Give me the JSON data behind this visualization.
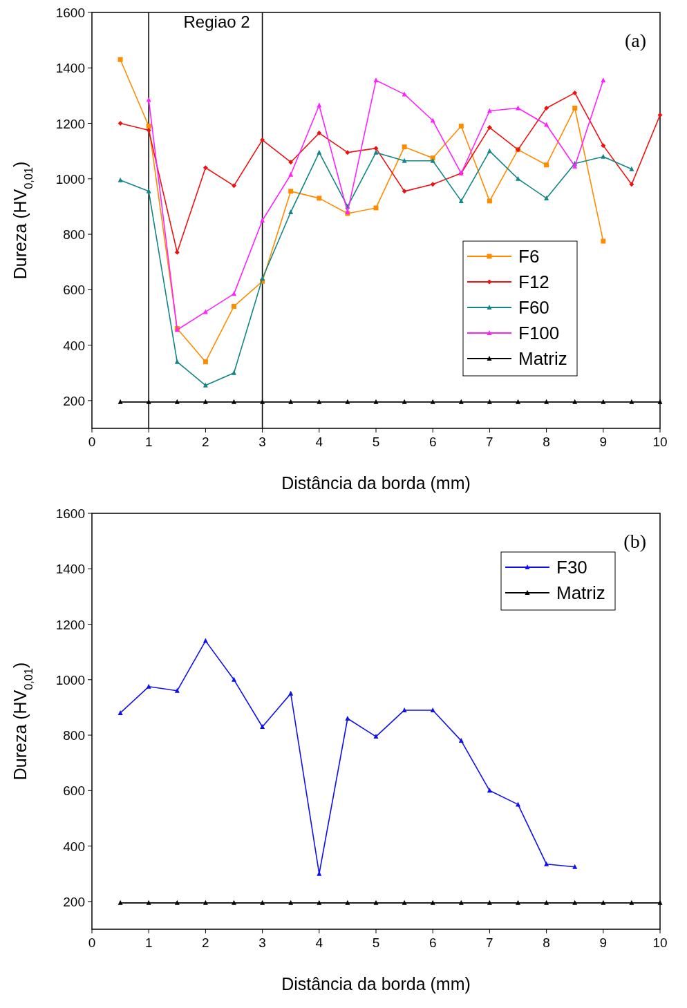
{
  "chart_data": [
    {
      "type": "line",
      "xlabel": "Distância da borda (mm)",
      "ylabel": "Dureza (HV$_{0,01}$)",
      "xlim": [
        0,
        10
      ],
      "xticks": [
        0,
        1,
        2,
        3,
        4,
        5,
        6,
        7,
        8,
        9,
        10
      ],
      "ylim": [
        100,
        1600
      ],
      "yticks": [
        200,
        400,
        600,
        800,
        1000,
        1200,
        1400,
        1600
      ],
      "grid": false,
      "legend": "center right",
      "annotations": [
        "(a)"
      ],
      "ref_lines": [
        {
          "axis": "x",
          "value": 1,
          "color": "#000000"
        },
        {
          "axis": "x",
          "value": 3,
          "label": "Regiao 2",
          "color": "#000000"
        }
      ],
      "series": [
        {
          "name": "F6",
          "color": "#ff8c00",
          "marker": "square",
          "x": [
            0.5,
            1,
            1.5,
            2,
            2.5,
            3,
            3.5,
            4,
            4.5,
            5,
            5.5,
            6,
            6.5,
            7,
            7.5,
            8,
            8.5,
            9
          ],
          "values": [
            1430,
            1190,
            460,
            340,
            540,
            630,
            955,
            930,
            875,
            895,
            1115,
            1075,
            1190,
            920,
            1105,
            1050,
            1255,
            775
          ]
        },
        {
          "name": "F12",
          "color": "#ee1111",
          "marker": "diamond",
          "x": [
            0.5,
            1,
            1.5,
            2,
            2.5,
            3,
            3.5,
            4,
            4.5,
            5,
            5.5,
            6,
            6.5,
            7,
            7.5,
            8,
            8.5,
            9,
            9.5,
            10
          ],
          "values": [
            1200,
            1175,
            735,
            1040,
            975,
            1140,
            1060,
            1165,
            1095,
            1110,
            955,
            980,
            1020,
            1185,
            1105,
            1255,
            1310,
            1120,
            980,
            1230
          ]
        },
        {
          "name": "F60",
          "color": "#138585",
          "marker": "triangle",
          "x": [
            0.5,
            1,
            1.5,
            2,
            2.5,
            3,
            3.5,
            4,
            4.5,
            5,
            5.5,
            6,
            6.5,
            7,
            7.5,
            8,
            8.5,
            9,
            9.5
          ],
          "values": [
            995,
            955,
            340,
            255,
            300,
            640,
            880,
            1095,
            900,
            1095,
            1065,
            1065,
            920,
            1100,
            1000,
            930,
            1055,
            1080,
            1035
          ]
        },
        {
          "name": "F100",
          "color": "#ff22ff",
          "marker": "triangle",
          "x": [
            1,
            1.5,
            2,
            2.5,
            3,
            3.5,
            4,
            4.5,
            5,
            5.5,
            6,
            6.5,
            7,
            7.5,
            8,
            8.5,
            9
          ],
          "values": [
            1285,
            455,
            520,
            585,
            850,
            1015,
            1265,
            880,
            1355,
            1305,
            1210,
            1020,
            1245,
            1255,
            1195,
            1045,
            1355
          ]
        },
        {
          "name": "Matriz",
          "color": "#000000",
          "marker": "triangle",
          "x": [
            0.5,
            1,
            1.5,
            2,
            2.5,
            3,
            3.5,
            4,
            4.5,
            5,
            5.5,
            6,
            6.5,
            7,
            7.5,
            8,
            8.5,
            9,
            9.5,
            10
          ],
          "values": [
            195,
            195,
            195,
            195,
            195,
            195,
            195,
            195,
            195,
            195,
            195,
            195,
            195,
            195,
            195,
            195,
            195,
            195,
            195,
            195
          ]
        }
      ]
    },
    {
      "type": "line",
      "xlabel": "Distância da borda (mm)",
      "ylabel": "Dureza (HV$_{0,01}$)",
      "xlim": [
        0,
        10
      ],
      "xticks": [
        0,
        1,
        2,
        3,
        4,
        5,
        6,
        7,
        8,
        9,
        10
      ],
      "ylim": [
        100,
        1600
      ],
      "yticks": [
        200,
        400,
        600,
        800,
        1000,
        1200,
        1400,
        1600
      ],
      "grid": false,
      "legend": "top right",
      "annotations": [
        "(b)"
      ],
      "series": [
        {
          "name": "F30",
          "color": "#1010ee",
          "marker": "triangle",
          "x": [
            0.5,
            1,
            1.5,
            2,
            2.5,
            3,
            3.5,
            4,
            4.5,
            5,
            5.5,
            6,
            6.5,
            7,
            7.5,
            8,
            8.5
          ],
          "values": [
            880,
            975,
            960,
            1140,
            1000,
            830,
            950,
            300,
            860,
            795,
            890,
            890,
            780,
            600,
            550,
            335,
            325
          ]
        },
        {
          "name": "Matriz",
          "color": "#000000",
          "marker": "triangle",
          "x": [
            0.5,
            1,
            1.5,
            2,
            2.5,
            3,
            3.5,
            4,
            4.5,
            5,
            5.5,
            6,
            6.5,
            7,
            7.5,
            8,
            8.5,
            9,
            9.5,
            10
          ],
          "values": [
            195,
            195,
            195,
            195,
            195,
            195,
            195,
            195,
            195,
            195,
            195,
            195,
            195,
            195,
            195,
            195,
            195,
            195,
            195,
            195
          ]
        }
      ]
    }
  ]
}
